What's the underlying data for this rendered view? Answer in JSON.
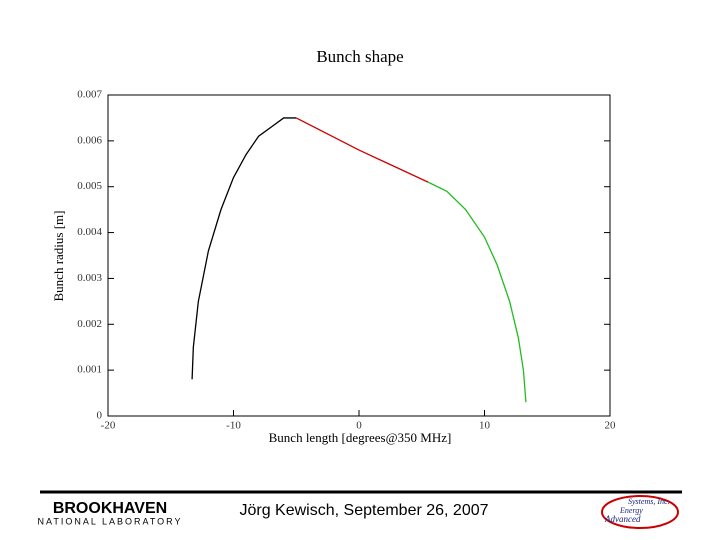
{
  "chart_data": {
    "type": "line",
    "title": "Bunch shape",
    "x_label": "Bunch length [degrees@350 MHz]",
    "y_label": "Bunch radius [m]",
    "xlim": [
      -20,
      20
    ],
    "xticks": [
      -20,
      -10,
      0,
      10,
      20
    ],
    "ylim": [
      0,
      0.007
    ],
    "yticks": [
      0,
      0.001,
      0.002,
      0.003,
      0.004,
      0.005,
      0.006,
      0.007
    ],
    "series": [
      {
        "color": "#000000",
        "x": [
          -13.3,
          -13.2,
          -12.8,
          -12,
          -11,
          -10,
          -9,
          -8,
          -7,
          -6,
          -5
        ],
        "values": [
          0.0008,
          0.0015,
          0.0025,
          0.0036,
          0.0045,
          0.0052,
          0.0057,
          0.0061,
          0.0063,
          0.0065,
          0.0065
        ]
      },
      {
        "color": "#cc0000",
        "x": [
          -5,
          0,
          5.5
        ],
        "values": [
          0.0065,
          0.0058,
          0.0051
        ]
      },
      {
        "color": "#22bb22",
        "x": [
          5.5,
          7,
          8.5,
          10,
          11,
          12,
          12.7,
          13.1,
          13.3
        ],
        "values": [
          0.0051,
          0.0049,
          0.0045,
          0.0039,
          0.0033,
          0.0025,
          0.0017,
          0.001,
          0.0003
        ]
      }
    ]
  },
  "footer": {
    "text": "Jörg Kewisch, September 26, 2007",
    "logo_left": [
      "BROOKHAVEN",
      "NATIONAL LABORATORY"
    ],
    "logo_right": [
      "Advanced",
      "Energy",
      "Systems, Inc."
    ]
  }
}
